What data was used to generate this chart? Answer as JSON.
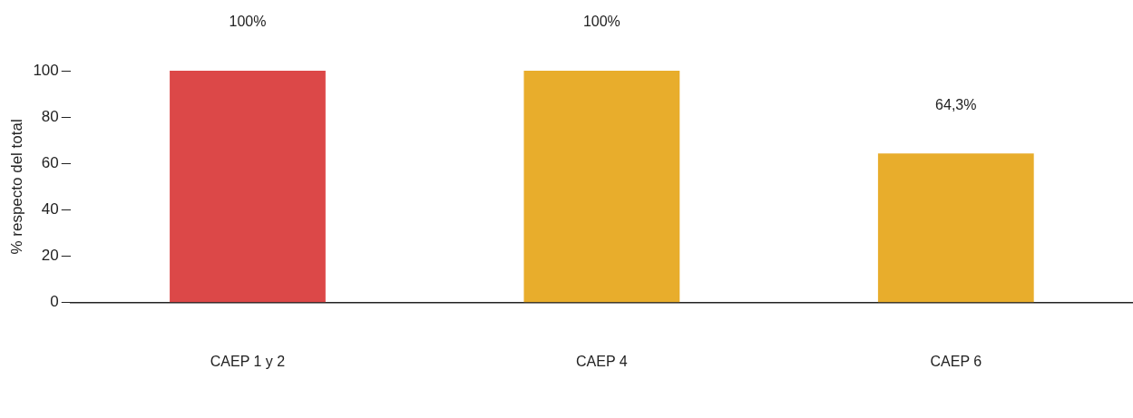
{
  "chart_data": {
    "type": "bar",
    "ylabel": "% respecto del total",
    "categories": [
      "CAEP 1 y 2",
      "CAEP 4",
      "CAEP 6"
    ],
    "values": [
      100,
      100,
      64.3
    ],
    "colors": [
      "#dc4848",
      "#e8ad2c",
      "#e8ad2c"
    ],
    "value_labels": [
      "100%",
      "100%",
      "64,3%"
    ],
    "ylim": [
      0,
      100
    ],
    "yticks": [
      0,
      20,
      40,
      60,
      80,
      100
    ],
    "grid": false,
    "legend": false
  }
}
